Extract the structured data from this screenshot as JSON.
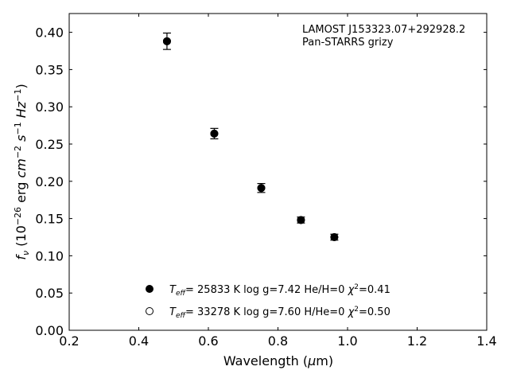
{
  "chart_data": {
    "type": "scatter",
    "xlabel": "Wavelength (μm)",
    "ylabel": "f_ν (10^−26 erg cm^−2 s^−1 Hz^−1)",
    "xlim": [
      0.2,
      1.4
    ],
    "ylim": [
      0.0,
      0.42
    ],
    "x_ticks": [
      "0.2",
      "0.4",
      "0.6",
      "0.8",
      "1.0",
      "1.2",
      "1.4"
    ],
    "y_ticks": [
      "0.00",
      "0.05",
      "0.10",
      "0.15",
      "0.20",
      "0.25",
      "0.30",
      "0.35",
      "0.40"
    ],
    "grid": false,
    "annotation": [
      "LAMOST J153323.07+292928.2",
      "Pan-STARRS grizy"
    ],
    "series": [
      {
        "name": "T_eff= 25833 K  log g=7.42  He/H=0  χ²=0.41",
        "marker": "filled",
        "x": [
          0.481,
          0.617,
          0.752,
          0.866,
          0.962
        ],
        "y": [
          0.388,
          0.264,
          0.191,
          0.148,
          0.125
        ]
      },
      {
        "name": "T_eff= 33278 K  log g=7.60  H/He=0  χ²=0.50",
        "marker": "open",
        "x": [
          0.481,
          0.617,
          0.752,
          0.866,
          0.962
        ],
        "y": [
          0.388,
          0.264,
          0.191,
          0.148,
          0.125
        ]
      }
    ],
    "observed": {
      "x": [
        0.481,
        0.617,
        0.752,
        0.866,
        0.962
      ],
      "y": [
        0.388,
        0.264,
        0.191,
        0.148,
        0.125
      ],
      "yerr": [
        0.011,
        0.007,
        0.006,
        0.004,
        0.004
      ]
    },
    "legend_position": "bottom-center",
    "colors": {
      "marker": "#000000",
      "axis": "#000000"
    }
  }
}
